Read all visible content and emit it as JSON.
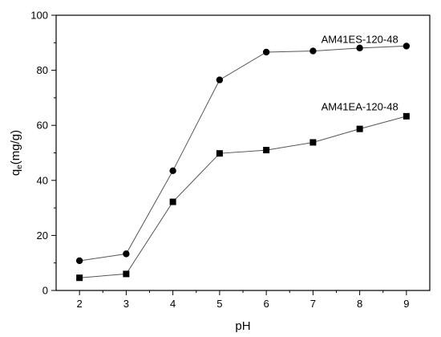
{
  "chart_data": {
    "type": "line",
    "title": "",
    "xlabel": "pH",
    "ylabel_main": "q",
    "ylabel_sub": "e",
    "ylabel_unit": "(mg/g)",
    "xlim": [
      1.5,
      9.5
    ],
    "ylim": [
      0,
      100
    ],
    "x_ticks": [
      2,
      3,
      4,
      5,
      6,
      7,
      8,
      9
    ],
    "y_ticks": [
      0,
      20,
      40,
      60,
      80,
      100
    ],
    "grid": false,
    "line_color": "#555555",
    "marker_color": "#000000",
    "series": [
      {
        "name": "AM41ES-120-48",
        "marker": "circle",
        "x": [
          2,
          3,
          4,
          5,
          6,
          7,
          8,
          9
        ],
        "y": [
          10.8,
          13.3,
          43.5,
          76.5,
          86.6,
          87.0,
          88.1,
          88.8
        ]
      },
      {
        "name": "AM41EA-120-48",
        "marker": "square",
        "x": [
          2,
          3,
          4,
          5,
          6,
          7,
          8,
          9
        ],
        "y": [
          4.6,
          6.0,
          32.2,
          49.8,
          51.0,
          53.8,
          58.7,
          63.3
        ]
      }
    ]
  }
}
